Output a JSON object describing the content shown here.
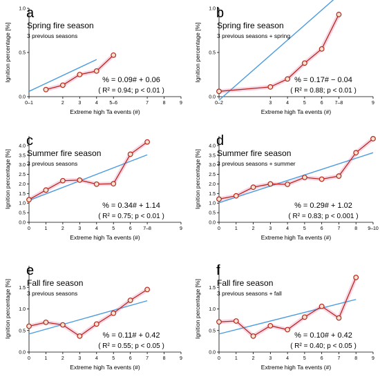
{
  "figure": {
    "x_axis_title": "Extreme high Ta events (#)",
    "y_axis_title": "Ignition percentage [%]",
    "colors": {
      "data_line": "#b5261e",
      "marker_fill": "#f6e3cf",
      "fit_line": "#4a9be0",
      "ci_band": "#f7c4d8"
    }
  },
  "chart_data": [
    {
      "type": "line",
      "panel": "a",
      "title": "Spring fire season",
      "subtitle": "3 previous seasons",
      "equation": "% = 0.09# + 0.06",
      "r2_text": "( R² = 0.94; p < 0.01 )",
      "x": [
        1,
        2,
        3,
        4,
        5
      ],
      "x_ticks": [
        {
          "v": 0,
          "label": "0–1"
        },
        {
          "v": 2,
          "label": "2"
        },
        {
          "v": 3,
          "label": "3"
        },
        {
          "v": 4,
          "label": "4"
        },
        {
          "v": 5,
          "label": "5–6"
        },
        {
          "v": 7,
          "label": "7"
        },
        {
          "v": 8,
          "label": "8"
        },
        {
          "v": 9,
          "label": "9"
        }
      ],
      "xlim": [
        0,
        9
      ],
      "ylim": [
        0,
        1.0
      ],
      "y_ticks": [
        0,
        0.5,
        1.0
      ],
      "y": [
        0.08,
        0.13,
        0.25,
        0.29,
        0.47
      ],
      "fit": {
        "slope": 0.09,
        "intercept": 0.06,
        "x_range": [
          0,
          4
        ]
      }
    },
    {
      "type": "line",
      "panel": "b",
      "title": "Spring fire season",
      "subtitle": "3 previous seasons + spring",
      "equation": "% = 0.17# − 0.04",
      "r2_text": "( R² = 0.88; p < 0.01 )",
      "x": [
        0,
        3,
        4,
        5,
        6,
        7
      ],
      "x_ticks": [
        {
          "v": 0,
          "label": "0–2"
        },
        {
          "v": 3,
          "label": "3"
        },
        {
          "v": 4,
          "label": "4"
        },
        {
          "v": 5,
          "label": "5"
        },
        {
          "v": 6,
          "label": "6"
        },
        {
          "v": 7,
          "label": "7–8"
        },
        {
          "v": 9,
          "label": "9"
        }
      ],
      "xlim": [
        0,
        9
      ],
      "ylim": [
        0,
        1.0
      ],
      "y_ticks": [
        0,
        0.5,
        1.0
      ],
      "y": [
        0.06,
        0.11,
        0.2,
        0.38,
        0.54,
        0.93
      ],
      "fit": {
        "slope": 0.17,
        "intercept": -0.04,
        "x_range": [
          0,
          7
        ]
      }
    },
    {
      "type": "line",
      "panel": "c",
      "title": "Summer fire season",
      "subtitle": "3 previous seasons",
      "equation": "% = 0.34# + 1.14",
      "r2_text": "( R² = 0.75; p < 0.01 )",
      "x": [
        0,
        1,
        2,
        3,
        4,
        5,
        6,
        7
      ],
      "x_ticks": [
        {
          "v": 0,
          "label": "0"
        },
        {
          "v": 1,
          "label": "1"
        },
        {
          "v": 2,
          "label": "2"
        },
        {
          "v": 3,
          "label": "3"
        },
        {
          "v": 4,
          "label": "4"
        },
        {
          "v": 5,
          "label": "5"
        },
        {
          "v": 6,
          "label": "6"
        },
        {
          "v": 7,
          "label": "7–8"
        },
        {
          "v": 9,
          "label": "9"
        }
      ],
      "xlim": [
        0,
        9
      ],
      "ylim": [
        0,
        4.5
      ],
      "y_ticks": [
        0,
        0.5,
        1.0,
        1.5,
        2.0,
        2.5,
        3.0,
        3.5,
        4.0
      ],
      "y": [
        1.18,
        1.68,
        2.17,
        2.2,
        1.99,
        2.01,
        3.55,
        4.19
      ],
      "fit": {
        "slope": 0.34,
        "intercept": 1.14,
        "x_range": [
          0,
          7
        ]
      }
    },
    {
      "type": "line",
      "panel": "d",
      "title": "Summer fire season",
      "subtitle": "3 previous seasons + summer",
      "equation": "% = 0.29# + 1.02",
      "r2_text": "( R² = 0.83; p < 0.001 )",
      "x": [
        0,
        1,
        2,
        3,
        4,
        5,
        6,
        7,
        8,
        9
      ],
      "x_ticks": [
        {
          "v": 0,
          "label": "0"
        },
        {
          "v": 1,
          "label": "1"
        },
        {
          "v": 2,
          "label": "2"
        },
        {
          "v": 3,
          "label": "3"
        },
        {
          "v": 4,
          "label": "4"
        },
        {
          "v": 5,
          "label": "5"
        },
        {
          "v": 6,
          "label": "6"
        },
        {
          "v": 7,
          "label": "7"
        },
        {
          "v": 8,
          "label": "8"
        },
        {
          "v": 9,
          "label": "9–10"
        }
      ],
      "xlim": [
        0,
        9
      ],
      "ylim": [
        0,
        4.5
      ],
      "y_ticks": [
        0,
        0.5,
        1.0,
        1.5,
        2.0,
        2.5,
        3.0,
        3.5,
        4.0
      ],
      "y": [
        1.21,
        1.38,
        1.83,
        2.0,
        1.98,
        2.34,
        2.25,
        2.41,
        3.63,
        4.36
      ],
      "fit": {
        "slope": 0.29,
        "intercept": 1.02,
        "x_range": [
          0,
          9
        ]
      }
    },
    {
      "type": "line",
      "panel": "e",
      "title": "Fall fire season",
      "subtitle": "3 previous seasons",
      "equation": "% = 0.11# + 0.42",
      "r2_text": "( R² = 0.55; p < 0.05 )",
      "x": [
        0,
        1,
        2,
        3,
        4,
        5,
        6,
        7
      ],
      "x_ticks": [
        {
          "v": 0,
          "label": "0"
        },
        {
          "v": 1,
          "label": "1"
        },
        {
          "v": 2,
          "label": "2"
        },
        {
          "v": 3,
          "label": "3"
        },
        {
          "v": 4,
          "label": "4"
        },
        {
          "v": 5,
          "label": "5"
        },
        {
          "v": 6,
          "label": "6"
        },
        {
          "v": 7,
          "label": "7"
        },
        {
          "v": 8,
          "label": "8"
        },
        {
          "v": 9,
          "label": "9"
        }
      ],
      "xlim": [
        0,
        9
      ],
      "ylim": [
        0,
        2.0
      ],
      "y_ticks": [
        0,
        0.5,
        1.0,
        1.5
      ],
      "y": [
        0.6,
        0.69,
        0.63,
        0.37,
        0.65,
        0.9,
        1.2,
        1.45
      ],
      "fit": {
        "slope": 0.11,
        "intercept": 0.42,
        "x_range": [
          0,
          7
        ]
      }
    },
    {
      "type": "line",
      "panel": "f",
      "title": "Fall fire season",
      "subtitle": "3 previous seasons + fall",
      "equation": "% = 0.10# + 0.42",
      "r2_text": "( R² = 0.40; p < 0.05 )",
      "x": [
        0,
        1,
        2,
        3,
        4,
        5,
        6,
        7,
        8
      ],
      "x_ticks": [
        {
          "v": 0,
          "label": "0"
        },
        {
          "v": 1,
          "label": "1"
        },
        {
          "v": 2,
          "label": "2"
        },
        {
          "v": 3,
          "label": "3"
        },
        {
          "v": 4,
          "label": "4"
        },
        {
          "v": 5,
          "label": "5"
        },
        {
          "v": 6,
          "label": "6"
        },
        {
          "v": 7,
          "label": "7"
        },
        {
          "v": 8,
          "label": "8"
        },
        {
          "v": 9,
          "label": "9"
        }
      ],
      "xlim": [
        0,
        9
      ],
      "ylim": [
        0,
        2.0
      ],
      "y_ticks": [
        0,
        0.5,
        1.0,
        1.5
      ],
      "y": [
        0.7,
        0.72,
        0.37,
        0.61,
        0.52,
        0.81,
        1.06,
        0.79,
        1.73
      ],
      "fit": {
        "slope": 0.1,
        "intercept": 0.42,
        "x_range": [
          0,
          8
        ]
      }
    }
  ]
}
